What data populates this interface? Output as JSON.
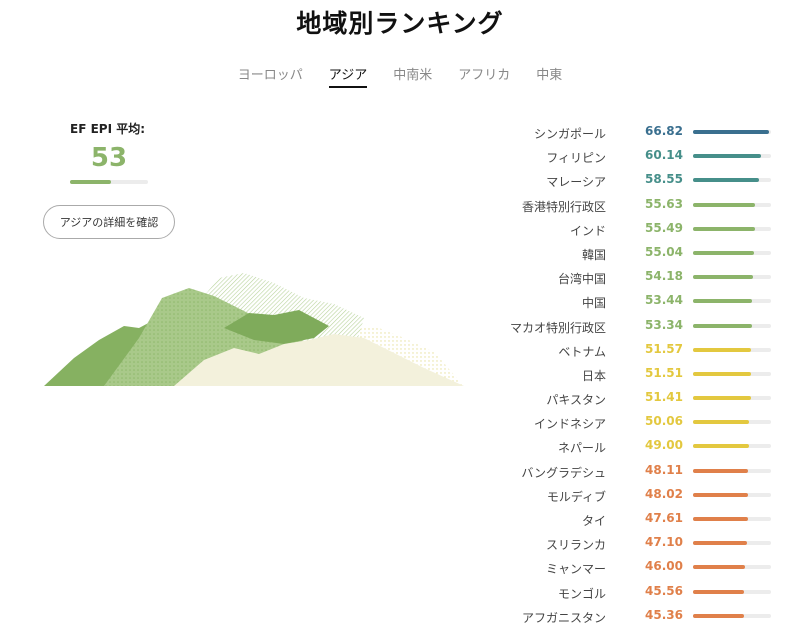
{
  "title": "地域別ランキング",
  "tabs": [
    {
      "label": "ヨーロッパ",
      "active": false
    },
    {
      "label": "アジア",
      "active": true
    },
    {
      "label": "中南米",
      "active": false
    },
    {
      "label": "アフリカ",
      "active": false
    },
    {
      "label": "中東",
      "active": false
    }
  ],
  "average": {
    "label": "EF EPI 平均:",
    "value": "53",
    "level": 0.53
  },
  "detail_button": "アジアの詳細を確認",
  "colors": {
    "very_high": "#3a6f8f",
    "high": "#468f8a",
    "moderate": "#8cb46a",
    "low": "#e3c83f",
    "very_low": "#e0804a"
  },
  "rankings": [
    {
      "country": "シンガポール",
      "score": "66.82",
      "level": "very_high",
      "fraction": 0.97
    },
    {
      "country": "フィリピン",
      "score": "60.14",
      "level": "high",
      "fraction": 0.87
    },
    {
      "country": "マレーシア",
      "score": "58.55",
      "level": "high",
      "fraction": 0.84
    },
    {
      "country": "香港特別行政区",
      "score": "55.63",
      "level": "moderate",
      "fraction": 0.79
    },
    {
      "country": "インド",
      "score": "55.49",
      "level": "moderate",
      "fraction": 0.79
    },
    {
      "country": "韓国",
      "score": "55.04",
      "level": "moderate",
      "fraction": 0.78
    },
    {
      "country": "台湾中国",
      "score": "54.18",
      "level": "moderate",
      "fraction": 0.77
    },
    {
      "country": "中国",
      "score": "53.44",
      "level": "moderate",
      "fraction": 0.76
    },
    {
      "country": "マカオ特別行政区",
      "score": "53.34",
      "level": "moderate",
      "fraction": 0.76
    },
    {
      "country": "ベトナム",
      "score": "51.57",
      "level": "low",
      "fraction": 0.74
    },
    {
      "country": "日本",
      "score": "51.51",
      "level": "low",
      "fraction": 0.74
    },
    {
      "country": "パキスタン",
      "score": "51.41",
      "level": "low",
      "fraction": 0.74
    },
    {
      "country": "インドネシア",
      "score": "50.06",
      "level": "low",
      "fraction": 0.72
    },
    {
      "country": "ネパール",
      "score": "49.00",
      "level": "low",
      "fraction": 0.72
    },
    {
      "country": "バングラデシュ",
      "score": "48.11",
      "level": "very_low",
      "fraction": 0.7
    },
    {
      "country": "モルディブ",
      "score": "48.02",
      "level": "very_low",
      "fraction": 0.7
    },
    {
      "country": "タイ",
      "score": "47.61",
      "level": "very_low",
      "fraction": 0.7
    },
    {
      "country": "スリランカ",
      "score": "47.10",
      "level": "very_low",
      "fraction": 0.69
    },
    {
      "country": "ミャンマー",
      "score": "46.00",
      "level": "very_low",
      "fraction": 0.67
    },
    {
      "country": "モンゴル",
      "score": "45.56",
      "level": "very_low",
      "fraction": 0.66
    },
    {
      "country": "アフガニスタン",
      "score": "45.36",
      "level": "very_low",
      "fraction": 0.66
    }
  ]
}
